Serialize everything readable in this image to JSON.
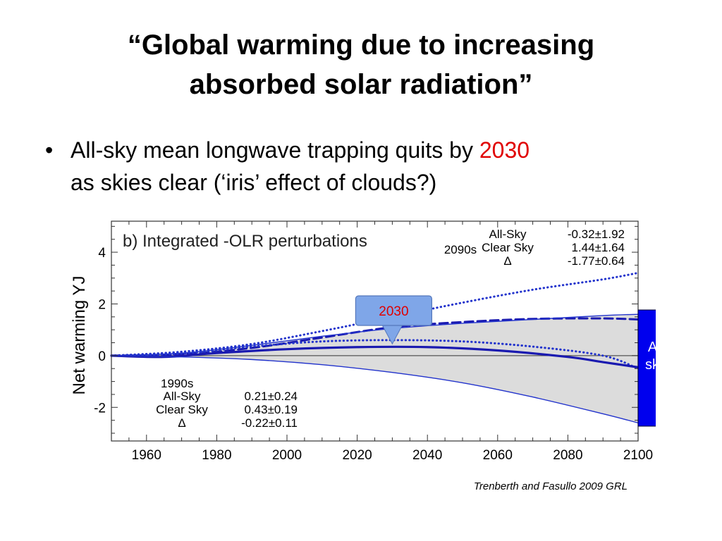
{
  "slide": {
    "title_line1": "“Global warming due to increasing",
    "title_line2": "absorbed solar radiation”",
    "bullet_symbol": "•",
    "bullet_text_before": "All-sky mean longwave trapping quits by ",
    "bullet_highlight": "2030",
    "bullet_text_after": "as skies clear (‘iris’ effect of clouds?)",
    "highlight_color": "#e00000",
    "citation": "Trenberth and Fasullo 2009 GRL"
  },
  "chart_data": {
    "type": "line",
    "title": "b) Integrated -OLR perturbations",
    "ylabel": "Net warming   YJ",
    "xlabel": "",
    "xlim": [
      1950,
      2100
    ],
    "ylim": [
      -3.3,
      5.2
    ],
    "xticks": [
      1960,
      1980,
      2000,
      2020,
      2040,
      2060,
      2080,
      2100
    ],
    "yticks": [
      -2,
      0,
      2,
      4
    ],
    "series": [
      {
        "style": "dotted",
        "color": "#2233cc",
        "x": [
          1950,
          1970,
          1990,
          2010,
          2030,
          2050,
          2070,
          2090,
          2100
        ],
        "y": [
          0,
          0.15,
          0.45,
          0.95,
          1.5,
          2.05,
          2.55,
          2.95,
          3.2
        ]
      },
      {
        "style": "dashed",
        "color": "#1a1ab0",
        "x": [
          1950,
          1970,
          1990,
          2010,
          2030,
          2050,
          2070,
          2090,
          2100
        ],
        "y": [
          0,
          0.05,
          0.3,
          0.7,
          1.1,
          1.3,
          1.42,
          1.44,
          1.4
        ]
      },
      {
        "style": "solid-thin",
        "color": "#2233cc",
        "x": [
          1950,
          1970,
          1990,
          2010,
          2030,
          2050,
          2070,
          2090,
          2100
        ],
        "y": [
          0,
          0.1,
          0.4,
          0.75,
          1.05,
          1.25,
          1.4,
          1.55,
          1.6
        ]
      },
      {
        "style": "dotted",
        "color": "#2233cc",
        "x": [
          1950,
          1970,
          1990,
          2010,
          2030,
          2050,
          2070,
          2090,
          2100
        ],
        "y": [
          0,
          0.08,
          0.35,
          0.55,
          0.6,
          0.55,
          0.35,
          0.0,
          -0.5
        ]
      },
      {
        "style": "solid-thick",
        "color": "#1a1ab0",
        "x": [
          1950,
          1965,
          1980,
          2000,
          2020,
          2040,
          2060,
          2080,
          2090,
          2100
        ],
        "y": [
          0,
          -0.05,
          0.1,
          0.25,
          0.33,
          0.33,
          0.2,
          -0.05,
          -0.25,
          -0.45
        ]
      },
      {
        "style": "solid-thin",
        "color": "#2233cc",
        "x": [
          1950,
          1970,
          1990,
          2010,
          2030,
          2050,
          2070,
          2090,
          2100
        ],
        "y": [
          0,
          -0.05,
          -0.15,
          -0.35,
          -0.65,
          -1.05,
          -1.6,
          -2.25,
          -2.6
        ]
      }
    ],
    "zero_line": 0,
    "annotations": {
      "top_right": {
        "period": "2090s",
        "rows": [
          {
            "label": "All-Sky",
            "value": "-0.32±1.92"
          },
          {
            "label": "Clear Sky",
            "value": "1.44±1.64"
          },
          {
            "label": "Δ",
            "value": "-1.77±0.64"
          }
        ]
      },
      "bottom_left": {
        "period": "1990s",
        "rows": [
          {
            "label": "All-Sky",
            "value": "0.21±0.24"
          },
          {
            "label": "Clear Sky",
            "value": "0.43±0.19"
          },
          {
            "label": "Δ",
            "value": "-0.22±0.11"
          }
        ]
      },
      "callout": {
        "text": "2030",
        "x": 2030,
        "y": 0.4,
        "text_color": "#e00000",
        "fill": "#7fa6e8"
      },
      "side_box": {
        "text_line1": "All",
        "text_line2": "sky",
        "fill": "#0000ee",
        "text_color": "#ffffff"
      }
    },
    "colors": {
      "shade": "#dcdcdc",
      "line": "#2233cc"
    }
  }
}
